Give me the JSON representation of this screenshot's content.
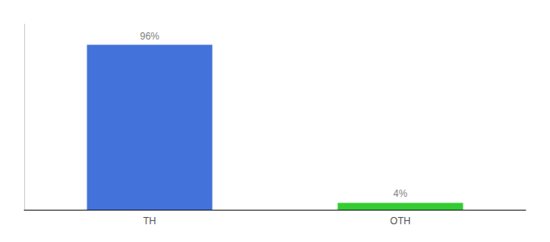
{
  "chart_data": {
    "type": "bar",
    "categories": [
      "TH",
      "OTH"
    ],
    "values": [
      96,
      4
    ],
    "value_labels": [
      "96%",
      "4%"
    ],
    "colors": [
      "#4472db",
      "#33cc33"
    ],
    "ylim": [
      0,
      108
    ],
    "data_labels": true,
    "tick_labels": "x",
    "grid": false
  }
}
